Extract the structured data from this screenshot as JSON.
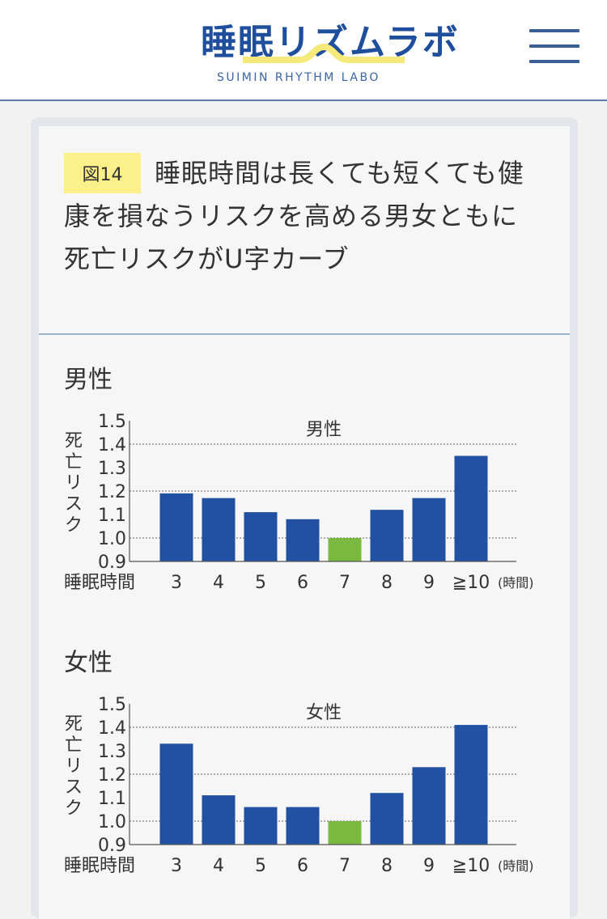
{
  "header": {
    "logo_title": "睡眠リズムラボ",
    "logo_subtitle": "SUIMIN RHYTHM LABO",
    "menu_icon": "hamburger-menu-icon"
  },
  "figure": {
    "badge": "図14",
    "title": "睡眠時間は長くても短くても健康を損なうリスクを高める男女ともに死亡リスクがU字カーブ"
  },
  "colors": {
    "bar": "#2250a2",
    "highlight": "#7ab840",
    "accent": "#fbf08a",
    "brand": "#1f4e9c"
  },
  "sections": [
    {
      "label": "男性"
    },
    {
      "label": "女性"
    }
  ],
  "chart_data": [
    {
      "type": "bar",
      "title": "男性",
      "ylabel": "死亡リスク",
      "xlabel": "睡眠時間",
      "x_unit": "(時間)",
      "categories": [
        "3",
        "4",
        "5",
        "6",
        "7",
        "8",
        "9",
        "≧10"
      ],
      "values": [
        1.19,
        1.17,
        1.11,
        1.08,
        1.0,
        1.12,
        1.17,
        1.35
      ],
      "highlight_category": "7",
      "ylim": [
        0.9,
        1.5
      ],
      "yticks": [
        "0.9",
        "1.0",
        "1.1",
        "1.2",
        "1.3",
        "1.4",
        "1.5"
      ],
      "gridlines": [
        1.0,
        1.2,
        1.4
      ]
    },
    {
      "type": "bar",
      "title": "女性",
      "ylabel": "死亡リスク",
      "xlabel": "睡眠時間",
      "x_unit": "(時間)",
      "categories": [
        "3",
        "4",
        "5",
        "6",
        "7",
        "8",
        "9",
        "≧10"
      ],
      "values": [
        1.33,
        1.11,
        1.06,
        1.06,
        1.0,
        1.12,
        1.23,
        1.41
      ],
      "highlight_category": "7",
      "ylim": [
        0.9,
        1.5
      ],
      "yticks": [
        "0.9",
        "1.0",
        "1.1",
        "1.2",
        "1.3",
        "1.4",
        "1.5"
      ],
      "gridlines": [
        1.0,
        1.2,
        1.4
      ]
    }
  ]
}
